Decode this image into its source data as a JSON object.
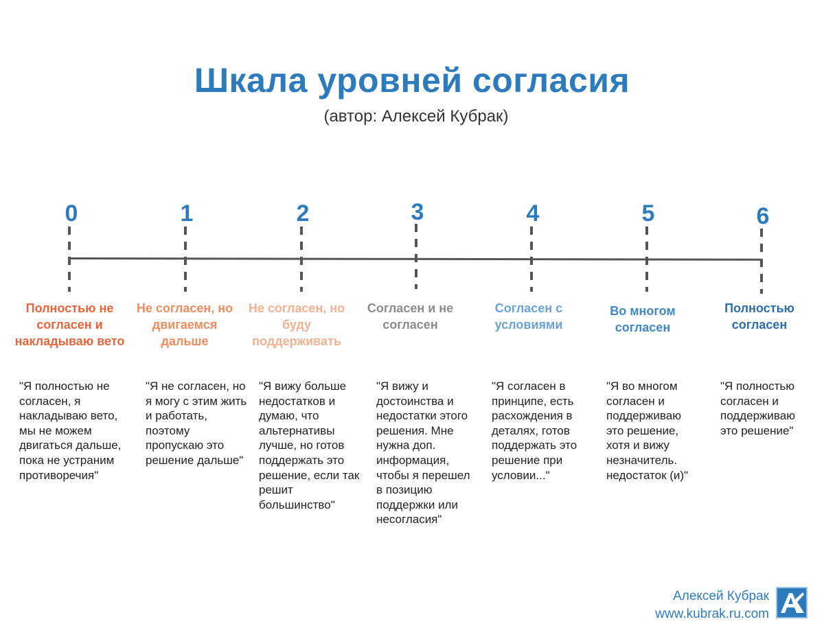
{
  "header": {
    "title": "Шкала уровней согласия",
    "subtitle": "(автор: Алексей Кубрак)"
  },
  "scale": {
    "levels": [
      {
        "number": "0",
        "label": "Полностью не согласен и накладываю вето",
        "color": "#e8643c",
        "quote": "\"Я полностью не согласен, я накладываю вето, мы не можем двигаться дальше, пока не устраним противоречия\""
      },
      {
        "number": "1",
        "label": "Не согласен, но двигаемся дальше",
        "color": "#ee8c60",
        "quote": "\"Я не согласен, но я могу с этим жить и работать, поэтому пропускаю это решение дальше\""
      },
      {
        "number": "2",
        "label": "Не согласен, но буду поддерживать",
        "color": "#f2b291",
        "quote": "\"Я вижу больше недостатков и думаю, что альтернативы лучше, но готов поддержать это решение, если так решит большинство\""
      },
      {
        "number": "3",
        "label": "Согласен и не согласен",
        "color": "#8c8c8c",
        "quote": "\"Я вижу и достоинства и недостатки этого решения. Мне нужна доп. информация, чтобы я перешел в позицию поддержки или несогласия\""
      },
      {
        "number": "4",
        "label": "Согласен с условиями",
        "color": "#6aa3d3",
        "quote": "\"Я согласен в принципе, есть расхождения в деталях, готов поддержать это решение при условии...\""
      },
      {
        "number": "5",
        "label": "Во многом согласен",
        "color": "#3f88c3",
        "quote": "\"Я во многом согласен и поддерживаю это решение, хотя и вижу незначитель. недостаток (и)\""
      },
      {
        "number": "6",
        "label": "Полностью согласен",
        "color": "#2d6fa8",
        "quote": "\"Я полностью согласен и поддерживаю это решение\""
      }
    ]
  },
  "footer": {
    "author": "Алексей Кубрак",
    "site": "www.kubrak.ru.com",
    "logo_text": "AK",
    "logo_color": "#2d7bbd"
  }
}
